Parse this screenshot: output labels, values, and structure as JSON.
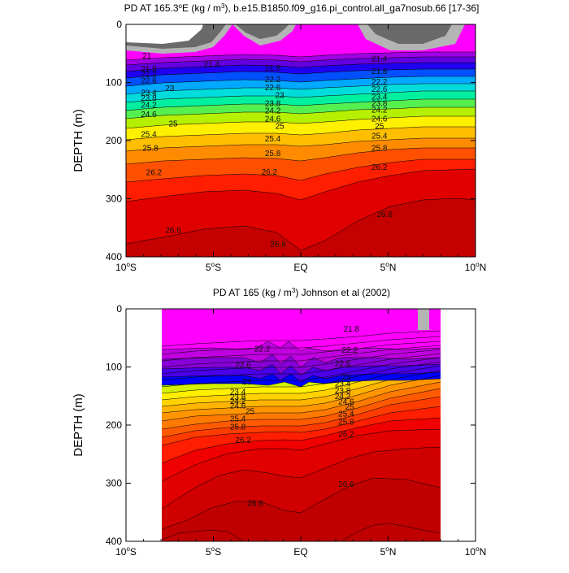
{
  "chart_data": [
    {
      "type": "contour",
      "title_main": "PD AT 165.3",
      "title_deg": "o",
      "title_mid": "E (kg / m",
      "title_sup": "3",
      "title_tail": "), b.e15.B1850.f09_g16.pi_control.all_ga7nosub.66 [17-36]",
      "ylabel": "DEPTH (m)",
      "xlim": [
        -10,
        10
      ],
      "ylim": [
        0,
        400
      ],
      "yticks": [
        0,
        100,
        200,
        300,
        400
      ],
      "xticks": [
        {
          "value": -10,
          "num": "10",
          "deg": "o",
          "hemi": "S"
        },
        {
          "value": -5,
          "num": "5",
          "deg": "o",
          "hemi": "S"
        },
        {
          "value": 0,
          "num": "EQ",
          "deg": "",
          "hemi": ""
        },
        {
          "value": 5,
          "num": "5",
          "deg": "o",
          "hemi": "N"
        },
        {
          "value": 10,
          "num": "10",
          "deg": "o",
          "hemi": "N"
        }
      ],
      "levels": [
        21,
        21.2,
        21.4,
        21.6,
        21.8,
        22,
        22.2,
        22.4,
        22.6,
        22.8,
        23,
        23.2,
        23.4,
        23.6,
        23.8,
        24,
        24.2,
        24.4,
        24.6,
        24.8,
        25,
        25.2,
        25.4,
        25.6,
        25.8,
        26,
        26.2,
        26.4,
        26.6,
        26.8
      ],
      "data_extent": [
        -10,
        10
      ],
      "contour_labels": [
        {
          "text": "21",
          "x": -8.8,
          "depth": 57
        },
        {
          "text": "21.4",
          "x": -5.1,
          "depth": 72
        },
        {
          "text": "21.8",
          "x": -8.7,
          "depth": 80
        },
        {
          "text": "22.2",
          "x": -8.7,
          "depth": 89
        },
        {
          "text": "22.6",
          "x": -8.7,
          "depth": 100
        },
        {
          "text": "23",
          "x": -7.5,
          "depth": 113
        },
        {
          "text": "23.4",
          "x": -8.7,
          "depth": 121
        },
        {
          "text": "23.8",
          "x": -8.7,
          "depth": 130
        },
        {
          "text": "24.2",
          "x": -8.7,
          "depth": 142
        },
        {
          "text": "24.6",
          "x": -8.7,
          "depth": 158
        },
        {
          "text": "25",
          "x": -7.3,
          "depth": 174
        },
        {
          "text": "25.4",
          "x": -8.7,
          "depth": 192
        },
        {
          "text": "25.8",
          "x": -8.6,
          "depth": 216
        },
        {
          "text": "26.2",
          "x": -8.4,
          "depth": 258
        },
        {
          "text": "26.6",
          "x": -7.3,
          "depth": 357
        },
        {
          "text": "21.8",
          "x": -1.6,
          "depth": 78
        },
        {
          "text": "22.2",
          "x": -1.6,
          "depth": 98
        },
        {
          "text": "22.6",
          "x": -1.6,
          "depth": 112
        },
        {
          "text": "23",
          "x": -1.2,
          "depth": 125
        },
        {
          "text": "23.8",
          "x": -1.6,
          "depth": 139
        },
        {
          "text": "24.2",
          "x": -1.6,
          "depth": 152
        },
        {
          "text": "24.6",
          "x": -1.6,
          "depth": 166
        },
        {
          "text": "25",
          "x": -1.2,
          "depth": 178
        },
        {
          "text": "25.4",
          "x": -1.6,
          "depth": 200
        },
        {
          "text": "25.8",
          "x": -1.6,
          "depth": 225
        },
        {
          "text": "26.2",
          "x": -1.8,
          "depth": 257
        },
        {
          "text": "26.6",
          "x": -1.3,
          "depth": 381
        },
        {
          "text": "21.4",
          "x": 4.5,
          "depth": 62
        },
        {
          "text": "21.8",
          "x": 4.5,
          "depth": 84
        },
        {
          "text": "22.2",
          "x": 4.5,
          "depth": 102
        },
        {
          "text": "22.6",
          "x": 4.5,
          "depth": 115
        },
        {
          "text": "23.4",
          "x": 4.5,
          "depth": 128
        },
        {
          "text": "23.8",
          "x": 4.5,
          "depth": 139
        },
        {
          "text": "24.2",
          "x": 4.5,
          "depth": 150
        },
        {
          "text": "24.6",
          "x": 4.5,
          "depth": 166
        },
        {
          "text": "25",
          "x": 4.5,
          "depth": 178
        },
        {
          "text": "25.4",
          "x": 4.5,
          "depth": 195
        },
        {
          "text": "25.8",
          "x": 4.5,
          "depth": 216
        },
        {
          "text": "26.2",
          "x": 4.5,
          "depth": 249
        },
        {
          "text": "26.6",
          "x": 4.8,
          "depth": 330
        }
      ]
    },
    {
      "type": "contour",
      "title_main": "PD AT 165 (kg / m",
      "title_deg": "",
      "title_mid": "",
      "title_sup": "3",
      "title_tail": ") Johnson et al (2002)",
      "ylabel": "DEPTH (m)",
      "xlim": [
        -10,
        10
      ],
      "ylim": [
        0,
        400
      ],
      "yticks": [
        0,
        100,
        200,
        300,
        400
      ],
      "xticks": [
        {
          "value": -10,
          "num": "10",
          "deg": "o",
          "hemi": "S"
        },
        {
          "value": -5,
          "num": "5",
          "deg": "o",
          "hemi": "S"
        },
        {
          "value": 0,
          "num": "EQ",
          "deg": "",
          "hemi": ""
        },
        {
          "value": 5,
          "num": "5",
          "deg": "o",
          "hemi": "N"
        },
        {
          "value": 10,
          "num": "10",
          "deg": "o",
          "hemi": "N"
        }
      ],
      "levels": [
        21,
        21.2,
        21.4,
        21.6,
        21.8,
        22,
        22.2,
        22.4,
        22.6,
        22.8,
        23,
        23.2,
        23.4,
        23.6,
        23.8,
        24,
        24.2,
        24.4,
        24.6,
        24.8,
        25,
        25.2,
        25.4,
        25.6,
        25.8,
        26,
        26.2,
        26.4,
        26.6,
        26.8
      ],
      "data_extent": [
        -8,
        8
      ],
      "contour_labels": [
        {
          "text": "21.8",
          "x": 2.9,
          "depth": 38
        },
        {
          "text": "22.2",
          "x": -2.2,
          "depth": 72
        },
        {
          "text": "22.2",
          "x": 2.8,
          "depth": 74
        },
        {
          "text": "22.6",
          "x": -3.3,
          "depth": 100
        },
        {
          "text": "22.6",
          "x": 2.4,
          "depth": 97
        },
        {
          "text": "23",
          "x": -3.1,
          "depth": 129
        },
        {
          "text": "23",
          "x": 2.6,
          "depth": 121
        },
        {
          "text": "23.4",
          "x": -3.6,
          "depth": 146
        },
        {
          "text": "23.4",
          "x": 2.4,
          "depth": 132
        },
        {
          "text": "23.8",
          "x": -3.6,
          "depth": 155
        },
        {
          "text": "23.8",
          "x": 2.4,
          "depth": 144
        },
        {
          "text": "24.2",
          "x": -3.6,
          "depth": 162
        },
        {
          "text": "24.2",
          "x": 2.4,
          "depth": 154
        },
        {
          "text": "24.6",
          "x": -3.6,
          "depth": 170
        },
        {
          "text": "24.6",
          "x": 2.6,
          "depth": 163
        },
        {
          "text": "25",
          "x": -2.9,
          "depth": 180
        },
        {
          "text": "25",
          "x": 2.8,
          "depth": 172
        },
        {
          "text": "25.4",
          "x": -3.6,
          "depth": 192
        },
        {
          "text": "25.4",
          "x": 2.6,
          "depth": 184
        },
        {
          "text": "25.8",
          "x": -3.6,
          "depth": 206
        },
        {
          "text": "25.8",
          "x": 2.6,
          "depth": 198
        },
        {
          "text": "26.2",
          "x": -3.3,
          "depth": 229
        },
        {
          "text": "26.2",
          "x": 2.6,
          "depth": 219
        },
        {
          "text": "26.6",
          "x": -2.6,
          "depth": 338
        },
        {
          "text": "26.6",
          "x": 2.6,
          "depth": 305
        }
      ]
    }
  ],
  "colors": {
    "land_dark": "#6a6a6a",
    "land_light": "#b4b4b4",
    "background": "#ffffff",
    "contour_line": "#000000",
    "band_shades": [
      "#a7a7a7",
      "#c900ff",
      "#ff00ff",
      "#ff00ff",
      "#c000e0",
      "#8800d8",
      "#4a00e8",
      "#0000ff",
      "#0064ff",
      "#009bff",
      "#00c8ff",
      "#00e1d2",
      "#00f0a0",
      "#00f064",
      "#55f03c",
      "#9bf000",
      "#d2f000",
      "#fff000",
      "#ffd200",
      "#ffb400",
      "#ff9600",
      "#ff7a00",
      "#ff5a00",
      "#ff3c00",
      "#ff1e00",
      "#f50000",
      "#e10000",
      "#d20000",
      "#c80000",
      "#c80000"
    ]
  }
}
